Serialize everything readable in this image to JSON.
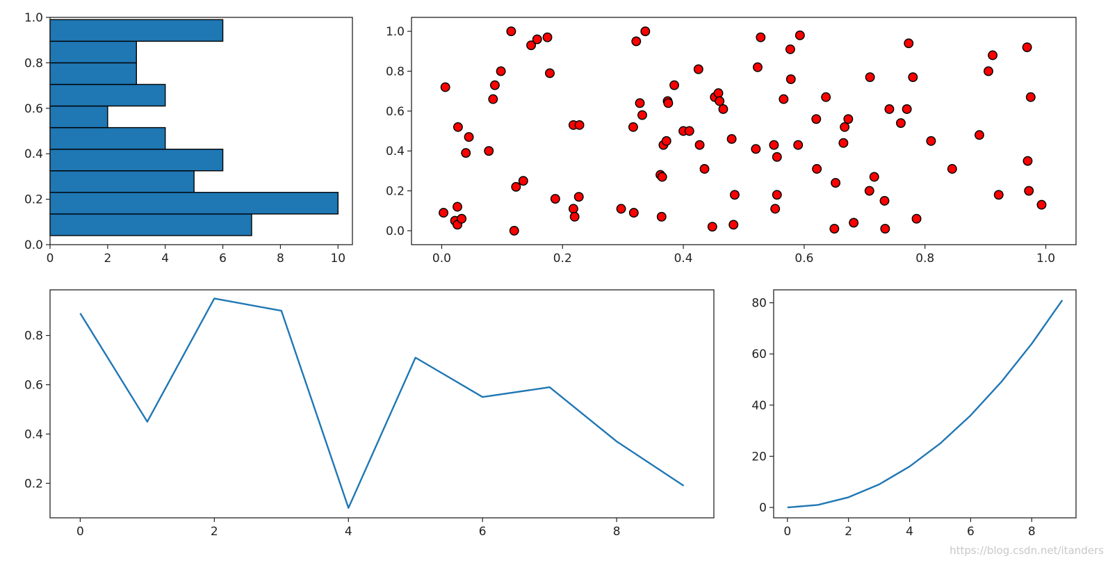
{
  "watermark": "https://blog.csdn.net/itanders",
  "style": {
    "bar_color": "#1f77b4",
    "line_color": "#1f77b4",
    "point_fill": "#ff0000",
    "point_edge": "#000000"
  },
  "chart_data": [
    {
      "type": "bar",
      "orientation": "horizontal",
      "bin_edges": [
        0.04,
        0.135,
        0.23,
        0.325,
        0.42,
        0.515,
        0.61,
        0.705,
        0.8,
        0.895,
        0.99
      ],
      "values": [
        7,
        10,
        5,
        6,
        4,
        2,
        4,
        3,
        3,
        6
      ],
      "xlim": [
        0,
        10.5
      ],
      "ylim": [
        0,
        1.0
      ],
      "xticks": [
        "0",
        "2",
        "4",
        "6",
        "8",
        "10"
      ],
      "yticks": [
        "0.0",
        "0.2",
        "0.4",
        "0.6",
        "0.8",
        "1.0"
      ],
      "grid": false
    },
    {
      "type": "scatter",
      "x": [
        0.003,
        0.006,
        0.022,
        0.026,
        0.026,
        0.027,
        0.033,
        0.04,
        0.045,
        0.078,
        0.085,
        0.088,
        0.098,
        0.115,
        0.12,
        0.123,
        0.135,
        0.148,
        0.158,
        0.175,
        0.179,
        0.188,
        0.218,
        0.22,
        0.218,
        0.228,
        0.227,
        0.297,
        0.317,
        0.318,
        0.322,
        0.328,
        0.332,
        0.337,
        0.362,
        0.365,
        0.364,
        0.367,
        0.372,
        0.374,
        0.375,
        0.385,
        0.4,
        0.41,
        0.425,
        0.427,
        0.435,
        0.448,
        0.452,
        0.458,
        0.46,
        0.466,
        0.48,
        0.483,
        0.485,
        0.52,
        0.523,
        0.528,
        0.55,
        0.552,
        0.555,
        0.555,
        0.566,
        0.577,
        0.578,
        0.59,
        0.593,
        0.62,
        0.621,
        0.636,
        0.65,
        0.652,
        0.665,
        0.667,
        0.673,
        0.682,
        0.708,
        0.709,
        0.716,
        0.733,
        0.734,
        0.741,
        0.76,
        0.77,
        0.773,
        0.78,
        0.786,
        0.81,
        0.845,
        0.89,
        0.905,
        0.912,
        0.922,
        0.969,
        0.97,
        0.972,
        0.975,
        0.993
      ],
      "y": [
        0.09,
        0.72,
        0.05,
        0.03,
        0.12,
        0.52,
        0.06,
        0.39,
        0.47,
        0.4,
        0.66,
        0.73,
        0.8,
        1.0,
        0.0,
        0.22,
        0.25,
        0.93,
        0.96,
        0.97,
        0.79,
        0.16,
        0.11,
        0.07,
        0.53,
        0.53,
        0.17,
        0.11,
        0.52,
        0.09,
        0.95,
        0.64,
        0.58,
        1.0,
        0.28,
        0.27,
        0.07,
        0.43,
        0.45,
        0.65,
        0.64,
        0.73,
        0.5,
        0.5,
        0.81,
        0.43,
        0.31,
        0.02,
        0.67,
        0.69,
        0.65,
        0.61,
        0.46,
        0.03,
        0.18,
        0.41,
        0.82,
        0.97,
        0.43,
        0.11,
        0.37,
        0.18,
        0.66,
        0.91,
        0.76,
        0.43,
        0.98,
        0.56,
        0.31,
        0.67,
        0.01,
        0.24,
        0.44,
        0.52,
        0.56,
        0.04,
        0.2,
        0.77,
        0.27,
        0.15,
        0.01,
        0.61,
        0.54,
        0.61,
        0.94,
        0.77,
        0.06,
        0.45,
        0.31,
        0.48,
        0.8,
        0.88,
        0.18,
        0.92,
        0.35,
        0.2,
        0.67,
        0.13
      ],
      "xlim": [
        -0.05,
        1.05
      ],
      "ylim": [
        -0.07,
        1.07
      ],
      "xticks": [
        "0.0",
        "0.2",
        "0.4",
        "0.6",
        "0.8",
        "1.0"
      ],
      "yticks": [
        "0.0",
        "0.2",
        "0.4",
        "0.6",
        "0.8",
        "1.0"
      ],
      "grid": false
    },
    {
      "type": "line",
      "x": [
        0,
        1,
        2,
        3,
        4,
        5,
        6,
        7,
        8,
        9
      ],
      "y": [
        0.89,
        0.45,
        0.95,
        0.9,
        0.1,
        0.71,
        0.55,
        0.59,
        0.37,
        0.19
      ],
      "xlim": [
        -0.45,
        9.45
      ],
      "ylim": [
        0.06,
        0.985
      ],
      "xticks": [
        "0",
        "2",
        "4",
        "6",
        "8"
      ],
      "yticks": [
        "0.2",
        "0.4",
        "0.6",
        "0.8"
      ],
      "grid": false
    },
    {
      "type": "line",
      "x": [
        0,
        1,
        2,
        3,
        4,
        5,
        6,
        7,
        8,
        9
      ],
      "y": [
        0,
        1,
        4,
        9,
        16,
        25,
        36,
        49,
        64,
        81
      ],
      "xlim": [
        -0.45,
        9.45
      ],
      "ylim": [
        -4.05,
        85.05
      ],
      "xticks": [
        "0",
        "2",
        "4",
        "6",
        "8"
      ],
      "yticks": [
        "0",
        "20",
        "40",
        "60",
        "80"
      ],
      "grid": false
    }
  ]
}
